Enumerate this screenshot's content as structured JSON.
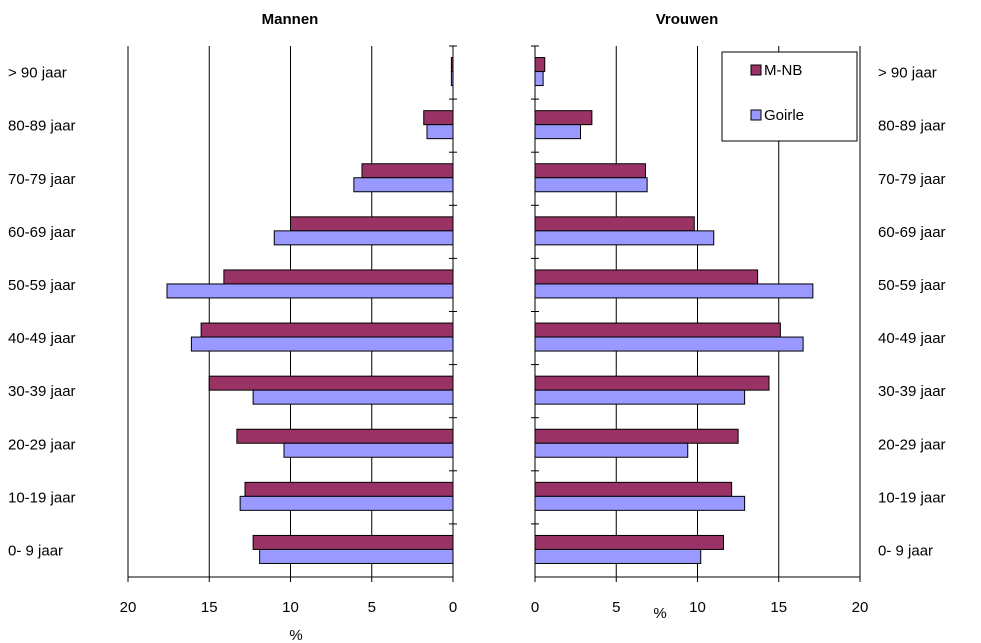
{
  "chart_data": [
    {
      "type": "bar",
      "orientation": "horizontal",
      "title": "Mannen",
      "xlabel": "%",
      "xlim": [
        20,
        0
      ],
      "x_direction": "reversed",
      "xticks": [
        "20",
        "15",
        "10",
        "5",
        "0"
      ],
      "grid": true,
      "categories": [
        "> 90 jaar",
        "80-89 jaar",
        "70-79 jaar",
        "60-69 jaar",
        "50-59 jaar",
        "40-49 jaar",
        "30-39 jaar",
        "20-29 jaar",
        "10-19 jaar",
        "0- 9 jaar"
      ],
      "series": [
        {
          "name": "M-NB",
          "color": "#993366",
          "values": [
            0.1,
            1.8,
            5.6,
            10.0,
            14.1,
            15.5,
            15.0,
            13.3,
            12.8,
            12.3
          ]
        },
        {
          "name": "Goirle",
          "color": "#9999ff",
          "values": [
            0.1,
            1.6,
            6.1,
            11.0,
            17.6,
            16.1,
            12.3,
            10.4,
            13.1,
            11.9
          ]
        }
      ]
    },
    {
      "type": "bar",
      "orientation": "horizontal",
      "title": "Vrouwen",
      "xlabel": "%",
      "xlim": [
        0,
        20
      ],
      "xticks": [
        "0",
        "5",
        "10",
        "15",
        "20"
      ],
      "grid": true,
      "legend": "top-right",
      "categories": [
        "> 90 jaar",
        "80-89 jaar",
        "70-79 jaar",
        "60-69 jaar",
        "50-59 jaar",
        "40-49 jaar",
        "30-39 jaar",
        "20-29 jaar",
        "10-19 jaar",
        "0- 9 jaar"
      ],
      "series": [
        {
          "name": "M-NB",
          "color": "#993366",
          "values": [
            0.6,
            3.5,
            6.8,
            9.8,
            13.7,
            15.1,
            14.4,
            12.5,
            12.1,
            11.6
          ]
        },
        {
          "name": "Goirle",
          "color": "#9999ff",
          "values": [
            0.5,
            2.8,
            6.9,
            11.0,
            17.1,
            16.5,
            12.9,
            9.4,
            12.9,
            10.2
          ]
        }
      ]
    }
  ]
}
